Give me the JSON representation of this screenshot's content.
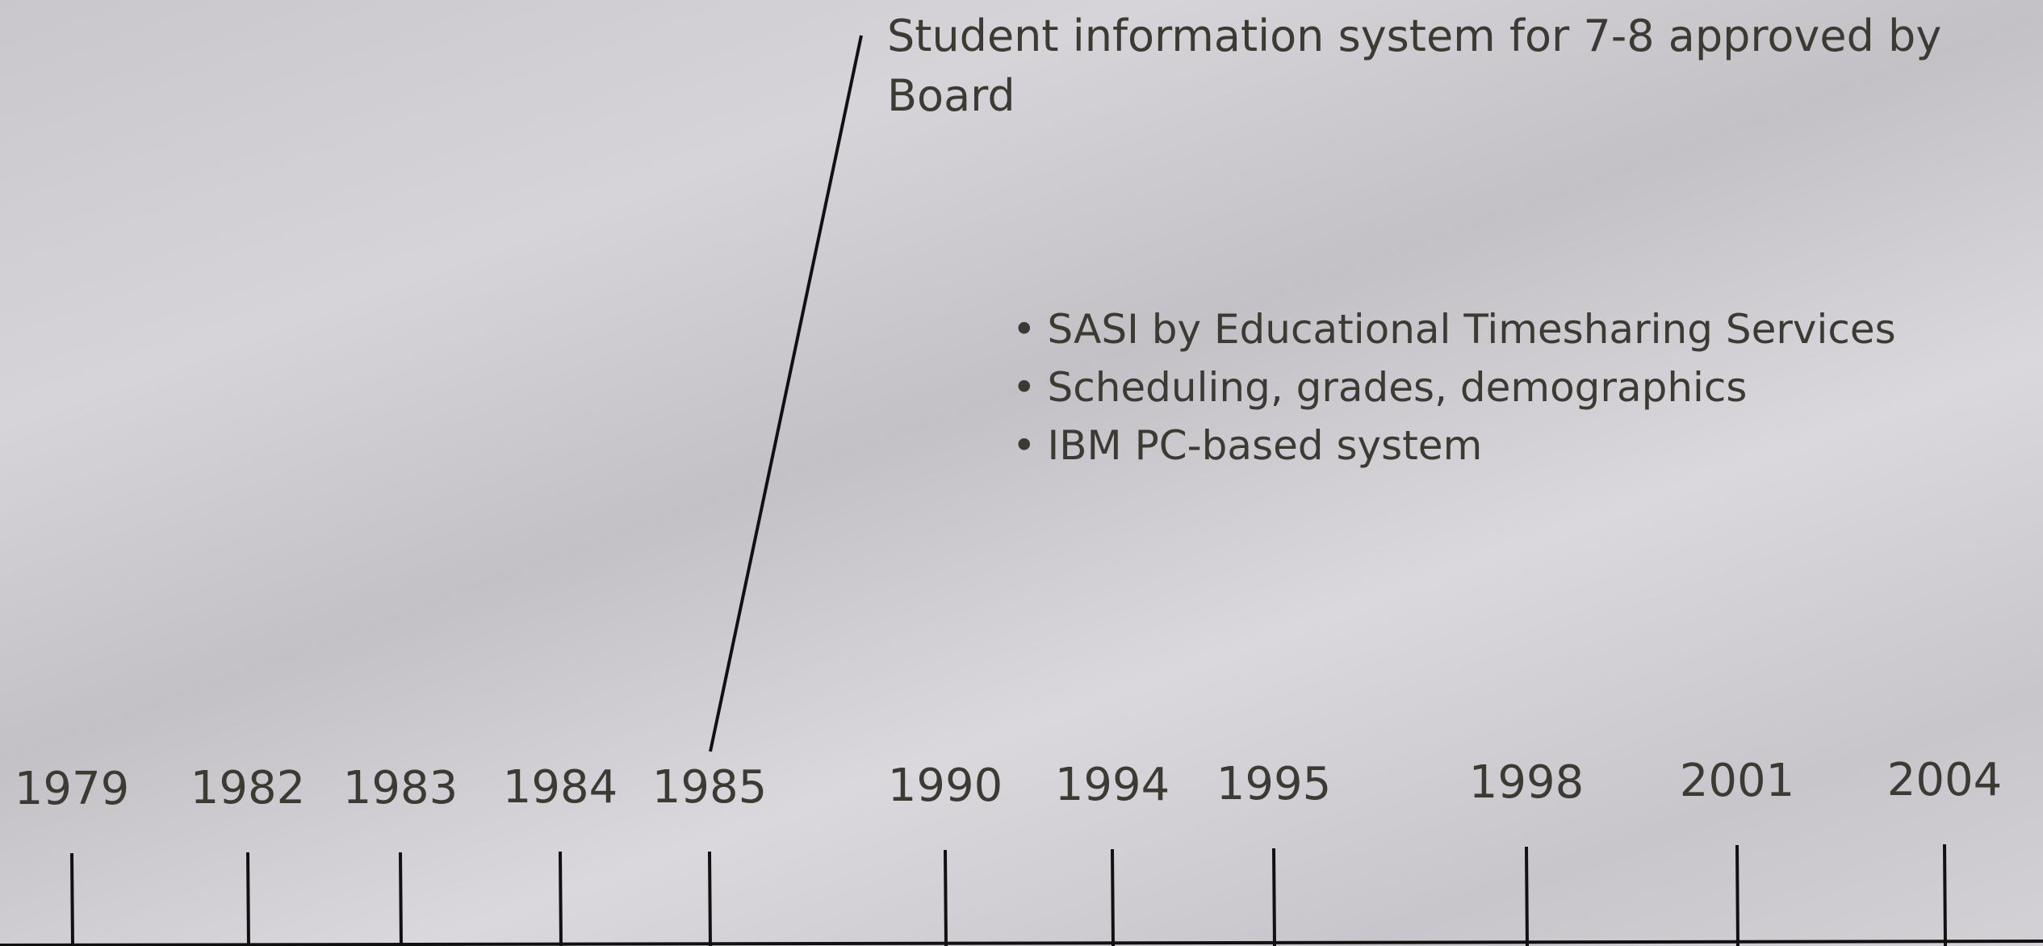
{
  "headline": "Student information system for 7-8 approved by Board",
  "bullets": [
    "SASI by Educational Timesharing Services",
    "Scheduling, grades, demographics",
    "IBM PC-based system"
  ],
  "timeline": {
    "years": [
      "1979",
      "1982",
      "1983",
      "1984",
      "1985",
      "1990",
      "1994",
      "1995",
      "1998",
      "2001",
      "2004"
    ]
  }
}
